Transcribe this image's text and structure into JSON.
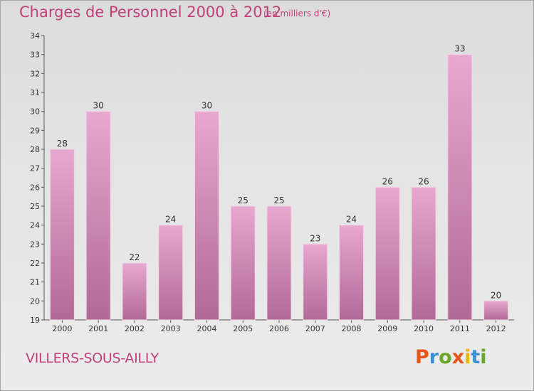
{
  "header": {
    "title": "Charges de Personnel 2000 à 2012",
    "subtitle": "(en milliers d'€)"
  },
  "footer": {
    "commune": "VILLERS-SOUS-AILLY",
    "logo_text": "Proxiti"
  },
  "colors": {
    "title": "#c2407a",
    "bar_top": "#e8a8cf",
    "bar_bottom": "#b06a96",
    "logo_letters": [
      "#e8561c",
      "#3a8fd0",
      "#6aa82a",
      "#e8561c",
      "#f0b414",
      "#3a8fd0",
      "#6aa82a"
    ]
  },
  "chart_data": {
    "type": "bar",
    "title": "Charges de Personnel 2000 à 2012",
    "subtitle": "(en milliers d'€)",
    "xlabel": "",
    "ylabel": "",
    "categories": [
      "2000",
      "2001",
      "2002",
      "2003",
      "2004",
      "2005",
      "2006",
      "2007",
      "2008",
      "2009",
      "2010",
      "2011",
      "2012"
    ],
    "values": [
      28,
      30,
      22,
      24,
      30,
      25,
      25,
      23,
      24,
      26,
      26,
      33,
      20
    ],
    "ylim": [
      19,
      34
    ],
    "yticks": [
      19,
      20,
      21,
      22,
      23,
      24,
      25,
      26,
      27,
      28,
      29,
      30,
      31,
      32,
      33,
      34
    ],
    "grid": false,
    "data_labels": true
  }
}
